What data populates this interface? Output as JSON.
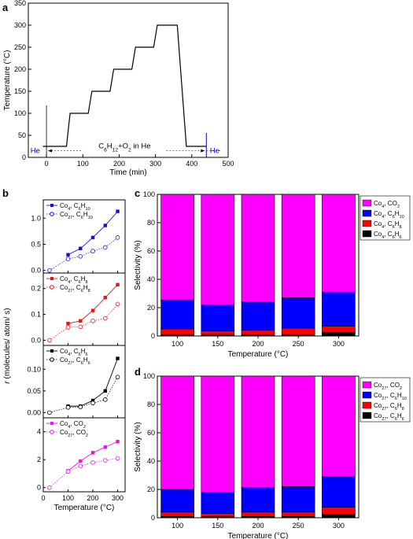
{
  "chart_data": [
    {
      "panel": "a",
      "type": "line",
      "xlabel": "Time (min)",
      "ylabel": "Temperature (°C)",
      "xlim": [
        -50,
        500
      ],
      "ylim": [
        0,
        350
      ],
      "xticks": [
        0,
        100,
        200,
        300,
        400,
        500
      ],
      "yticks": [
        0,
        50,
        100,
        150,
        200,
        250,
        300,
        350
      ],
      "series": [
        {
          "x": [
            -10,
            55,
            65,
            115,
            125,
            175,
            185,
            235,
            245,
            295,
            305,
            360,
            385,
            440
          ],
          "y": [
            25,
            25,
            100,
            100,
            150,
            150,
            200,
            200,
            250,
            250,
            300,
            300,
            25,
            25
          ]
        }
      ],
      "annotations": {
        "he_left": "He",
        "he_right": "He",
        "mix_main": "C",
        "mix_sub1": "6",
        "mix_mid": "H",
        "mix_sub2": "12",
        "mix_tail": "+O",
        "mix_sub3": "2",
        "mix_end": " in He",
        "arrow_start_x": 0,
        "arrow_end_x": 440,
        "arrow_y": 15
      }
    },
    {
      "panel": "b",
      "type": "line",
      "xlabel": "Temperature (°C)",
      "ylabel_pre": "r",
      "ylabel_post": " (molecules/ atom/ s)",
      "xlim": [
        0,
        330
      ],
      "xticks": [
        0,
        100,
        200,
        300
      ],
      "subplots": [
        {
          "ylim": [
            -0.05,
            1.35
          ],
          "yticks": [
            "0.0",
            "0.5",
            "1.0"
          ],
          "ytick_values": [
            0,
            0.5,
            1.0
          ],
          "color": "#1010dd",
          "legend": [
            {
              "pre": "Co",
              "sub1": "4",
              "mid": ", C",
              "sub2": "6",
              "mid2": "H",
              "sub3": "10"
            },
            {
              "pre": "Co",
              "sub1": "27",
              "mid": ", C",
              "sub2": "6",
              "mid2": "H",
              "sub3": "10"
            }
          ],
          "x": [
            25,
            100,
            150,
            200,
            250,
            300
          ],
          "filled": [
            null,
            0.3,
            0.42,
            0.63,
            0.86,
            1.13
          ],
          "open": [
            0.0,
            0.22,
            0.27,
            0.37,
            0.44,
            0.63
          ]
        },
        {
          "ylim": [
            -0.02,
            0.26
          ],
          "yticks": [
            "0.0",
            "0.1",
            "0.2"
          ],
          "ytick_values": [
            0,
            0.1,
            0.2
          ],
          "color": "#ee1111",
          "legend": [
            {
              "pre": "Co",
              "sub1": "4",
              "mid": ", C",
              "sub2": "6",
              "mid2": "H",
              "sub3": "8"
            },
            {
              "pre": "Co",
              "sub1": "27",
              "mid": ", C",
              "sub2": "6",
              "mid2": "H",
              "sub3": "8"
            }
          ],
          "x": [
            25,
            100,
            150,
            200,
            250,
            300
          ],
          "filled": [
            null,
            0.065,
            0.075,
            0.115,
            0.165,
            0.215
          ],
          "open": [
            0.0,
            0.05,
            0.052,
            0.075,
            0.085,
            0.14
          ]
        },
        {
          "ylim": [
            -0.012,
            0.155
          ],
          "yticks": [
            "0.00",
            "0.05",
            "0.10"
          ],
          "ytick_values": [
            0,
            0.05,
            0.1
          ],
          "color": "#000000",
          "legend": [
            {
              "pre": "Co",
              "sub1": "4",
              "mid": ", C",
              "sub2": "6",
              "mid2": "H",
              "sub3": "6"
            },
            {
              "pre": "Co",
              "sub1": "27",
              "mid": ", C",
              "sub2": "6",
              "mid2": "H",
              "sub3": "6"
            }
          ],
          "x": [
            25,
            100,
            150,
            200,
            250,
            300
          ],
          "filled": [
            null,
            0.015,
            0.015,
            0.028,
            0.05,
            0.125
          ],
          "open": [
            0.0,
            0.012,
            0.013,
            0.022,
            0.03,
            0.082
          ]
        },
        {
          "ylim": [
            -0.3,
            5.0
          ],
          "yticks": [
            "0",
            "2",
            "4"
          ],
          "ytick_values": [
            0,
            2,
            4
          ],
          "color": "#ee11ee",
          "legend": [
            {
              "pre": "Co",
              "sub1": "4",
              "mid": ", CO",
              "sub2": "2",
              "mid2": "",
              "sub3": ""
            },
            {
              "pre": "Co",
              "sub1": "27",
              "mid": ", CO",
              "sub2": "2",
              "mid2": "",
              "sub3": ""
            }
          ],
          "x": [
            25,
            100,
            150,
            200,
            250,
            300
          ],
          "filled": [
            null,
            1.2,
            1.9,
            2.5,
            2.9,
            3.3
          ],
          "open": [
            0.0,
            1.15,
            1.55,
            1.8,
            1.95,
            2.1
          ]
        }
      ]
    },
    {
      "panel": "c",
      "type": "bar",
      "stacked": true,
      "xlabel": "Temperature (°C)",
      "ylabel": "Selectivity (%)",
      "ylim": [
        0,
        100
      ],
      "yticks": [
        0,
        20,
        40,
        60,
        80,
        100
      ],
      "categories": [
        "100",
        "150",
        "200",
        "250",
        "300"
      ],
      "series": [
        {
          "color": "#000000",
          "values": [
            1.0,
            1.0,
            1.0,
            1.0,
            2.5
          ]
        },
        {
          "color": "#ff0000",
          "values": [
            4.0,
            2.5,
            3.0,
            4.5,
            4.5
          ]
        },
        {
          "color": "#0000ff",
          "values": [
            20.5,
            18.5,
            20.0,
            21.5,
            24.0
          ]
        },
        {
          "color": "#ff00ff",
          "values": [
            74.5,
            78.0,
            76.0,
            73.0,
            69.0
          ]
        }
      ],
      "legend": [
        {
          "color": "#ff00ff",
          "pre": "Co",
          "sub1": "4",
          "mid": ", CO",
          "sub2": "2",
          "mid2": "",
          "sub3": ""
        },
        {
          "color": "#0000ff",
          "pre": "Co",
          "sub1": "4",
          "mid": ", C",
          "sub2": "6",
          "mid2": "H",
          "sub3": "10"
        },
        {
          "color": "#ff0000",
          "pre": "Co",
          "sub1": "4",
          "mid": ", C",
          "sub2": "6",
          "mid2": "H",
          "sub3": "8"
        },
        {
          "color": "#000000",
          "pre": "Co",
          "sub1": "4",
          "mid": ", C",
          "sub2": "6",
          "mid2": "H",
          "sub3": "6"
        }
      ]
    },
    {
      "panel": "d",
      "type": "bar",
      "stacked": true,
      "xlabel": "Temperature (°C)",
      "ylabel": "Selectivity (%)",
      "ylim": [
        0,
        100
      ],
      "yticks": [
        0,
        20,
        40,
        60,
        80,
        100
      ],
      "categories": [
        "100",
        "150",
        "200",
        "250",
        "300"
      ],
      "series": [
        {
          "color": "#000000",
          "values": [
            1.0,
            0.8,
            1.0,
            1.0,
            2.5
          ]
        },
        {
          "color": "#ff0000",
          "values": [
            3.0,
            2.2,
            3.0,
            3.0,
            5.0
          ]
        },
        {
          "color": "#0000ff",
          "values": [
            16.0,
            15.0,
            17.5,
            18.0,
            21.5
          ]
        },
        {
          "color": "#ff00ff",
          "values": [
            80.0,
            82.0,
            78.5,
            78.0,
            71.0
          ]
        }
      ],
      "legend": [
        {
          "color": "#ff00ff",
          "pre": "Co",
          "sub1": "27",
          "mid": ", CO",
          "sub2": "2",
          "mid2": "",
          "sub3": ""
        },
        {
          "color": "#0000ff",
          "pre": "Co",
          "sub1": "27",
          "mid": ", C",
          "sub2": "6",
          "mid2": "H",
          "sub3": "10"
        },
        {
          "color": "#ff0000",
          "pre": "Co",
          "sub1": "27",
          "mid": ", C",
          "sub2": "6",
          "mid2": "H",
          "sub3": "8"
        },
        {
          "color": "#000000",
          "pre": "Co",
          "sub1": "27",
          "mid": ", C",
          "sub2": "6",
          "mid2": "H",
          "sub3": "6"
        }
      ]
    }
  ],
  "panel_letters": {
    "a": "a",
    "b": "b",
    "c": "c",
    "d": "d"
  }
}
